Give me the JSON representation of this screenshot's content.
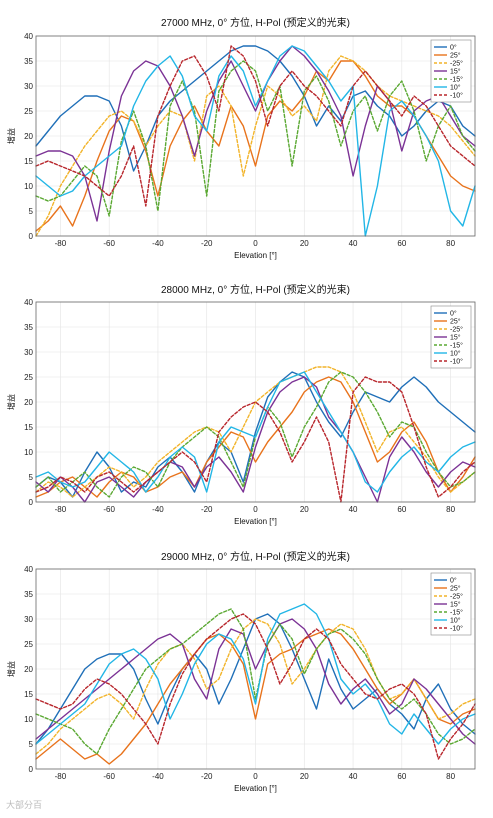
{
  "colors": {
    "0": "#1f6fb8",
    "25": "#e8731c",
    "-25": "#f2b42a",
    "15": "#7b3295",
    "-15": "#5aa832",
    "10": "#22b6e6",
    "-10": "#b8262c"
  },
  "watermark": "大部分百",
  "chart_data": [
    {
      "type": "line",
      "title": "27000 MHz, 0° 方位, H-Pol (预定义的光束)",
      "xlabel": "Elevation [°]",
      "ylabel": "增益",
      "xlim": [
        -90,
        90
      ],
      "ylim": [
        0,
        40
      ],
      "xticks": [
        -80,
        -60,
        -40,
        -20,
        0,
        20,
        40,
        60,
        80
      ],
      "yticks": [
        0,
        5,
        10,
        15,
        20,
        25,
        30,
        35,
        40
      ],
      "grid": true,
      "legend": "top-right",
      "x": [
        -90,
        -85,
        -80,
        -75,
        -70,
        -65,
        -60,
        -55,
        -50,
        -45,
        -40,
        -35,
        -30,
        -25,
        -20,
        -15,
        -10,
        -5,
        0,
        5,
        10,
        15,
        20,
        25,
        30,
        35,
        40,
        45,
        50,
        55,
        60,
        65,
        70,
        75,
        80,
        85,
        90
      ],
      "series": [
        {
          "name": "0°",
          "key": "0",
          "dashed": false,
          "values": [
            18,
            21,
            24,
            26,
            28,
            28,
            27,
            22,
            13,
            18,
            24,
            27,
            29,
            31,
            33,
            35,
            37,
            38,
            38,
            37,
            35,
            32,
            28,
            22,
            26,
            23,
            28,
            29,
            26,
            24,
            20,
            22,
            25,
            27,
            26,
            22,
            20
          ]
        },
        {
          "name": "25°",
          "key": "25",
          "dashed": false,
          "values": [
            1,
            3,
            6,
            2,
            8,
            15,
            21,
            24,
            23,
            17,
            8,
            18,
            23,
            26,
            21,
            18,
            26,
            22,
            14,
            24,
            27,
            25,
            28,
            33,
            31,
            35,
            35,
            32,
            28,
            26,
            26,
            24,
            20,
            16,
            12,
            10,
            9
          ]
        },
        {
          "name": "-25°",
          "key": "-25",
          "dashed": true,
          "values": [
            0,
            4,
            10,
            14,
            18,
            21,
            24,
            25,
            23,
            18,
            22,
            25,
            24,
            15,
            28,
            30,
            26,
            12,
            22,
            30,
            28,
            24,
            26,
            23,
            33,
            36,
            35,
            33,
            30,
            28,
            27,
            26,
            25,
            24,
            22,
            19,
            16
          ]
        },
        {
          "name": "15°",
          "key": "15",
          "dashed": false,
          "values": [
            16,
            17,
            17,
            16,
            12,
            3,
            17,
            28,
            33,
            35,
            34,
            30,
            24,
            16,
            25,
            31,
            35,
            30,
            25,
            31,
            35,
            38,
            36,
            33,
            29,
            24,
            12,
            22,
            30,
            27,
            17,
            25,
            27,
            28,
            24,
            20,
            18
          ]
        },
        {
          "name": "-15°",
          "key": "-15",
          "dashed": true,
          "values": [
            8,
            7,
            8,
            11,
            14,
            12,
            4,
            19,
            25,
            18,
            5,
            26,
            31,
            25,
            8,
            29,
            33,
            35,
            33,
            25,
            30,
            14,
            29,
            32,
            27,
            18,
            25,
            28,
            21,
            28,
            31,
            25,
            15,
            22,
            26,
            20,
            17
          ]
        },
        {
          "name": "10°",
          "key": "10",
          "dashed": false,
          "values": [
            12,
            10,
            8,
            9,
            12,
            14,
            16,
            18,
            26,
            31,
            34,
            36,
            32,
            24,
            21,
            32,
            36,
            33,
            26,
            31,
            36,
            38,
            37,
            34,
            31,
            27,
            30,
            0,
            10,
            25,
            27,
            24,
            20,
            15,
            5,
            2,
            10
          ]
        },
        {
          "name": "-10°",
          "key": "-10",
          "dashed": true,
          "values": [
            14,
            15,
            14,
            13,
            12,
            10,
            8,
            12,
            18,
            6,
            24,
            30,
            35,
            36,
            32,
            25,
            38,
            36,
            31,
            22,
            30,
            33,
            30,
            28,
            25,
            22,
            30,
            33,
            30,
            27,
            24,
            28,
            26,
            22,
            18,
            16,
            14
          ]
        }
      ]
    },
    {
      "type": "line",
      "title": "28000 MHz, 0° 方位, H-Pol (预定义的光束)",
      "xlabel": "Elevation [°]",
      "ylabel": "增益",
      "xlim": [
        -90,
        90
      ],
      "ylim": [
        0,
        40
      ],
      "xticks": [
        -80,
        -60,
        -40,
        -20,
        0,
        20,
        40,
        60,
        80
      ],
      "yticks": [
        0,
        5,
        10,
        15,
        20,
        25,
        30,
        35,
        40
      ],
      "grid": true,
      "legend": "top-right",
      "x": [
        -90,
        -85,
        -80,
        -75,
        -70,
        -65,
        -60,
        -55,
        -50,
        -45,
        -40,
        -35,
        -30,
        -25,
        -20,
        -15,
        -10,
        -5,
        0,
        5,
        10,
        15,
        20,
        25,
        30,
        35,
        40,
        45,
        50,
        55,
        60,
        65,
        70,
        75,
        80,
        85,
        90
      ],
      "series": [
        {
          "name": "0°",
          "key": "0",
          "dashed": false,
          "values": [
            3,
            5,
            4,
            1,
            6,
            10,
            7,
            2,
            4,
            3,
            7,
            9,
            6,
            2,
            8,
            12,
            10,
            4,
            14,
            21,
            24,
            26,
            25,
            20,
            16,
            13,
            18,
            22,
            21,
            20,
            23,
            25,
            23,
            20,
            18,
            16,
            14
          ]
        },
        {
          "name": "25°",
          "key": "25",
          "dashed": false,
          "values": [
            1,
            2,
            4,
            5,
            3,
            1,
            4,
            6,
            5,
            2,
            3,
            5,
            6,
            3,
            8,
            11,
            14,
            13,
            8,
            12,
            15,
            18,
            22,
            24,
            25,
            24,
            20,
            14,
            8,
            10,
            14,
            16,
            12,
            6,
            2,
            5,
            9
          ]
        },
        {
          "name": "-25°",
          "key": "-25",
          "dashed": true,
          "values": [
            2,
            4,
            3,
            1,
            3,
            5,
            7,
            6,
            3,
            5,
            8,
            10,
            12,
            14,
            15,
            14,
            10,
            15,
            20,
            22,
            24,
            25,
            26,
            27,
            27,
            26,
            22,
            16,
            10,
            14,
            15,
            12,
            9,
            5,
            2,
            4,
            6
          ]
        },
        {
          "name": "15°",
          "key": "15",
          "dashed": false,
          "values": [
            4,
            2,
            5,
            3,
            0,
            4,
            5,
            3,
            1,
            4,
            6,
            8,
            7,
            3,
            7,
            9,
            6,
            2,
            11,
            18,
            22,
            24,
            25,
            23,
            17,
            14,
            10,
            5,
            0,
            9,
            13,
            10,
            6,
            3,
            6,
            8,
            7
          ]
        },
        {
          "name": "-15°",
          "key": "-15",
          "dashed": true,
          "values": [
            3,
            5,
            2,
            4,
            6,
            3,
            1,
            5,
            7,
            6,
            3,
            8,
            11,
            13,
            15,
            13,
            8,
            3,
            13,
            19,
            16,
            9,
            15,
            19,
            24,
            26,
            25,
            22,
            18,
            13,
            16,
            15,
            10,
            6,
            3,
            4,
            6
          ]
        },
        {
          "name": "10°",
          "key": "10",
          "dashed": false,
          "values": [
            5,
            6,
            4,
            3,
            4,
            7,
            10,
            8,
            6,
            2,
            5,
            9,
            11,
            9,
            2,
            12,
            15,
            14,
            13,
            19,
            24,
            25,
            26,
            22,
            18,
            14,
            10,
            4,
            2,
            6,
            9,
            11,
            8,
            6,
            9,
            11,
            12
          ]
        },
        {
          "name": "-10°",
          "key": "-10",
          "dashed": true,
          "values": [
            2,
            3,
            5,
            4,
            2,
            5,
            6,
            4,
            2,
            4,
            6,
            8,
            10,
            8,
            4,
            14,
            17,
            19,
            20,
            18,
            14,
            8,
            12,
            17,
            12,
            0,
            22,
            25,
            24,
            24,
            22,
            15,
            7,
            1,
            3,
            6,
            8
          ]
        }
      ]
    },
    {
      "type": "line",
      "title": "29000 MHz, 0° 方位, H-Pol (预定义的光束)",
      "xlabel": "Elevation [°]",
      "ylabel": "增益",
      "xlim": [
        -90,
        90
      ],
      "ylim": [
        0,
        40
      ],
      "xticks": [
        -80,
        -60,
        -40,
        -20,
        0,
        20,
        40,
        60,
        80
      ],
      "yticks": [
        0,
        5,
        10,
        15,
        20,
        25,
        30,
        35,
        40
      ],
      "grid": true,
      "legend": "top-right",
      "x": [
        -90,
        -85,
        -80,
        -75,
        -70,
        -65,
        -60,
        -55,
        -50,
        -45,
        -40,
        -35,
        -30,
        -25,
        -20,
        -15,
        -10,
        -5,
        0,
        5,
        10,
        15,
        20,
        25,
        30,
        35,
        40,
        45,
        50,
        55,
        60,
        65,
        70,
        75,
        80,
        85,
        90
      ],
      "series": [
        {
          "name": "0°",
          "key": "0",
          "dashed": false,
          "values": [
            5,
            8,
            12,
            16,
            20,
            22,
            23,
            23,
            20,
            14,
            9,
            15,
            20,
            23,
            20,
            13,
            18,
            24,
            30,
            31,
            29,
            24,
            18,
            12,
            22,
            16,
            12,
            14,
            16,
            13,
            11,
            8,
            14,
            17,
            12,
            9,
            7
          ]
        },
        {
          "name": "25°",
          "key": "25",
          "dashed": false,
          "values": [
            2,
            4,
            6,
            4,
            2,
            3,
            1,
            3,
            6,
            9,
            13,
            17,
            20,
            23,
            26,
            27,
            25,
            21,
            10,
            21,
            23,
            24,
            26,
            27,
            28,
            27,
            24,
            20,
            16,
            13,
            15,
            18,
            14,
            10,
            9,
            11,
            12
          ]
        },
        {
          "name": "-25°",
          "key": "-25",
          "dashed": true,
          "values": [
            3,
            5,
            8,
            10,
            12,
            14,
            15,
            13,
            10,
            16,
            21,
            24,
            25,
            22,
            16,
            18,
            24,
            28,
            30,
            29,
            25,
            17,
            20,
            24,
            27,
            29,
            28,
            24,
            18,
            14,
            15,
            18,
            14,
            10,
            11,
            13,
            14
          ]
        },
        {
          "name": "15°",
          "key": "15",
          "dashed": false,
          "values": [
            6,
            8,
            10,
            12,
            14,
            16,
            18,
            20,
            22,
            24,
            26,
            27,
            25,
            18,
            14,
            24,
            28,
            27,
            20,
            25,
            29,
            30,
            28,
            24,
            17,
            13,
            16,
            18,
            15,
            11,
            13,
            18,
            16,
            13,
            10,
            7,
            5
          ]
        },
        {
          "name": "-15°",
          "key": "-15",
          "dashed": true,
          "values": [
            11,
            10,
            9,
            8,
            5,
            3,
            8,
            12,
            16,
            20,
            22,
            24,
            25,
            27,
            29,
            31,
            32,
            28,
            14,
            25,
            29,
            26,
            19,
            24,
            27,
            28,
            26,
            23,
            18,
            14,
            12,
            14,
            11,
            7,
            5,
            6,
            8
          ]
        },
        {
          "name": "10°",
          "key": "10",
          "dashed": false,
          "values": [
            5,
            7,
            9,
            11,
            13,
            17,
            21,
            23,
            24,
            22,
            18,
            10,
            15,
            21,
            25,
            27,
            26,
            22,
            13,
            26,
            31,
            32,
            33,
            31,
            26,
            18,
            15,
            17,
            14,
            9,
            7,
            11,
            8,
            5,
            8,
            10,
            11
          ]
        },
        {
          "name": "-10°",
          "key": "-10",
          "dashed": true,
          "values": [
            14,
            13,
            12,
            13,
            16,
            18,
            17,
            15,
            12,
            9,
            5,
            13,
            19,
            23,
            26,
            28,
            30,
            31,
            29,
            24,
            17,
            21,
            26,
            28,
            26,
            21,
            18,
            15,
            14,
            16,
            17,
            15,
            11,
            2,
            6,
            9,
            13
          ]
        }
      ]
    }
  ]
}
